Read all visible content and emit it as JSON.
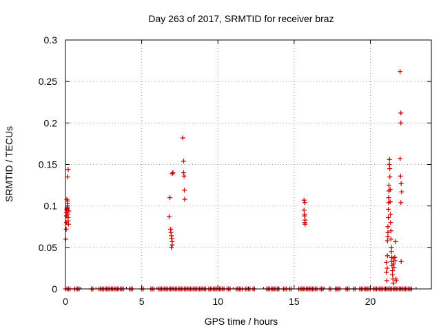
{
  "chart_data": {
    "type": "scatter",
    "title": "Day 263 of 2017, SRMTID for receiver braz",
    "xlabel": "GPS time / hours",
    "ylabel": "SRMTID / TECUs",
    "xlim": [
      0,
      24
    ],
    "ylim": [
      0,
      0.3
    ],
    "xticks": [
      0,
      5,
      10,
      15,
      20
    ],
    "xtick_labels": [
      "0",
      "5",
      "10",
      "15",
      "20"
    ],
    "yticks": [
      0,
      0.05,
      0.1,
      0.15,
      0.2,
      0.25,
      0.3
    ],
    "ytick_labels": [
      "0",
      "0.05",
      "0.1",
      "0.15",
      "0.2",
      "0.25",
      "0.3"
    ],
    "grid": true,
    "marker": "+",
    "color": "#cc0000",
    "series": [
      {
        "name": "SRMTID",
        "points": [
          [
            0.02,
            0.06
          ],
          [
            0.05,
            0.072
          ],
          [
            0.06,
            0.08
          ],
          [
            0.07,
            0.088
          ],
          [
            0.08,
            0.092
          ],
          [
            0.09,
            0.095
          ],
          [
            0.1,
            0.096
          ],
          [
            0.11,
            0.097
          ],
          [
            0.12,
            0.098
          ],
          [
            0.13,
            0.1
          ],
          [
            0.14,
            0.103
          ],
          [
            0.15,
            0.106
          ],
          [
            0.16,
            0.09
          ],
          [
            0.17,
            0.086
          ],
          [
            0.18,
            0.082
          ],
          [
            0.2,
            0.078
          ],
          [
            0.22,
            0.094
          ],
          [
            0.14,
            0.135
          ],
          [
            0.18,
            0.144
          ],
          [
            0.09,
            0.108
          ],
          [
            6.8,
            0.087
          ],
          [
            6.85,
            0.11
          ],
          [
            6.9,
            0.072
          ],
          [
            6.92,
            0.068
          ],
          [
            6.95,
            0.064
          ],
          [
            6.97,
            0.061
          ],
          [
            7.0,
            0.057
          ],
          [
            7.0,
            0.053
          ],
          [
            6.95,
            0.05
          ],
          [
            7.0,
            0.139
          ],
          [
            7.05,
            0.14
          ],
          [
            7.7,
            0.182
          ],
          [
            7.75,
            0.154
          ],
          [
            7.75,
            0.14
          ],
          [
            7.78,
            0.136
          ],
          [
            7.8,
            0.119
          ],
          [
            7.82,
            0.108
          ],
          [
            15.65,
            0.107
          ],
          [
            15.7,
            0.104
          ],
          [
            15.65,
            0.095
          ],
          [
            15.7,
            0.09
          ],
          [
            15.68,
            0.088
          ],
          [
            15.72,
            0.083
          ],
          [
            15.7,
            0.08
          ],
          [
            15.72,
            0.078
          ],
          [
            21.05,
            0.032
          ],
          [
            21.05,
            0.02
          ],
          [
            21.08,
            0.01
          ],
          [
            21.1,
            0.025
          ],
          [
            21.12,
            0.04
          ],
          [
            21.12,
            0.058
          ],
          [
            21.15,
            0.063
          ],
          [
            21.15,
            0.068
          ],
          [
            21.15,
            0.075
          ],
          [
            21.18,
            0.086
          ],
          [
            21.18,
            0.096
          ],
          [
            21.2,
            0.104
          ],
          [
            21.2,
            0.11
          ],
          [
            21.22,
            0.118
          ],
          [
            21.22,
            0.125
          ],
          [
            21.25,
            0.15
          ],
          [
            21.25,
            0.156
          ],
          [
            21.27,
            0.145
          ],
          [
            21.28,
            0.135
          ],
          [
            21.3,
            0.12
          ],
          [
            21.3,
            0.105
          ],
          [
            21.32,
            0.09
          ],
          [
            21.33,
            0.08
          ],
          [
            21.35,
            0.07
          ],
          [
            21.35,
            0.06
          ],
          [
            21.38,
            0.05
          ],
          [
            21.38,
            0.045
          ],
          [
            21.4,
            0.038
          ],
          [
            21.4,
            0.033
          ],
          [
            21.42,
            0.028
          ],
          [
            21.45,
            0.022
          ],
          [
            21.45,
            0.017
          ],
          [
            21.48,
            0.012
          ],
          [
            21.5,
            0.007
          ],
          [
            21.5,
            0.037
          ],
          [
            21.52,
            0.03
          ],
          [
            21.55,
            0.026
          ],
          [
            21.6,
            0.038
          ],
          [
            21.62,
            0.034
          ],
          [
            21.65,
            0.057
          ],
          [
            21.68,
            0.012
          ],
          [
            21.7,
            0.01
          ],
          [
            21.95,
            0.262
          ],
          [
            22.0,
            0.212
          ],
          [
            22.0,
            0.2
          ],
          [
            21.95,
            0.157
          ],
          [
            21.98,
            0.136
          ],
          [
            22.02,
            0.127
          ],
          [
            22.05,
            0.117
          ],
          [
            22.0,
            0.104
          ],
          [
            22.02,
            0.033
          ]
        ]
      }
    ],
    "zero_segments": [
      [
        0.0,
        0.3
      ],
      [
        0.6,
        0.9
      ],
      [
        1.7,
        1.8
      ],
      [
        2.2,
        3.8
      ],
      [
        4.2,
        4.4
      ],
      [
        5.0,
        5.1
      ],
      [
        5.6,
        5.8
      ],
      [
        6.1,
        9.2
      ],
      [
        9.4,
        10.4
      ],
      [
        10.6,
        10.8
      ],
      [
        11.2,
        11.6
      ],
      [
        11.8,
        12.1
      ],
      [
        12.3,
        12.4
      ],
      [
        13.2,
        14.0
      ],
      [
        14.3,
        14.5
      ],
      [
        14.7,
        14.8
      ],
      [
        15.3,
        16.5
      ],
      [
        16.7,
        16.9
      ],
      [
        17.3,
        17.4
      ],
      [
        17.7,
        18.0
      ],
      [
        18.4,
        18.6
      ],
      [
        18.9,
        19.0
      ],
      [
        19.3,
        20.0
      ],
      [
        20.2,
        22.7
      ]
    ]
  }
}
